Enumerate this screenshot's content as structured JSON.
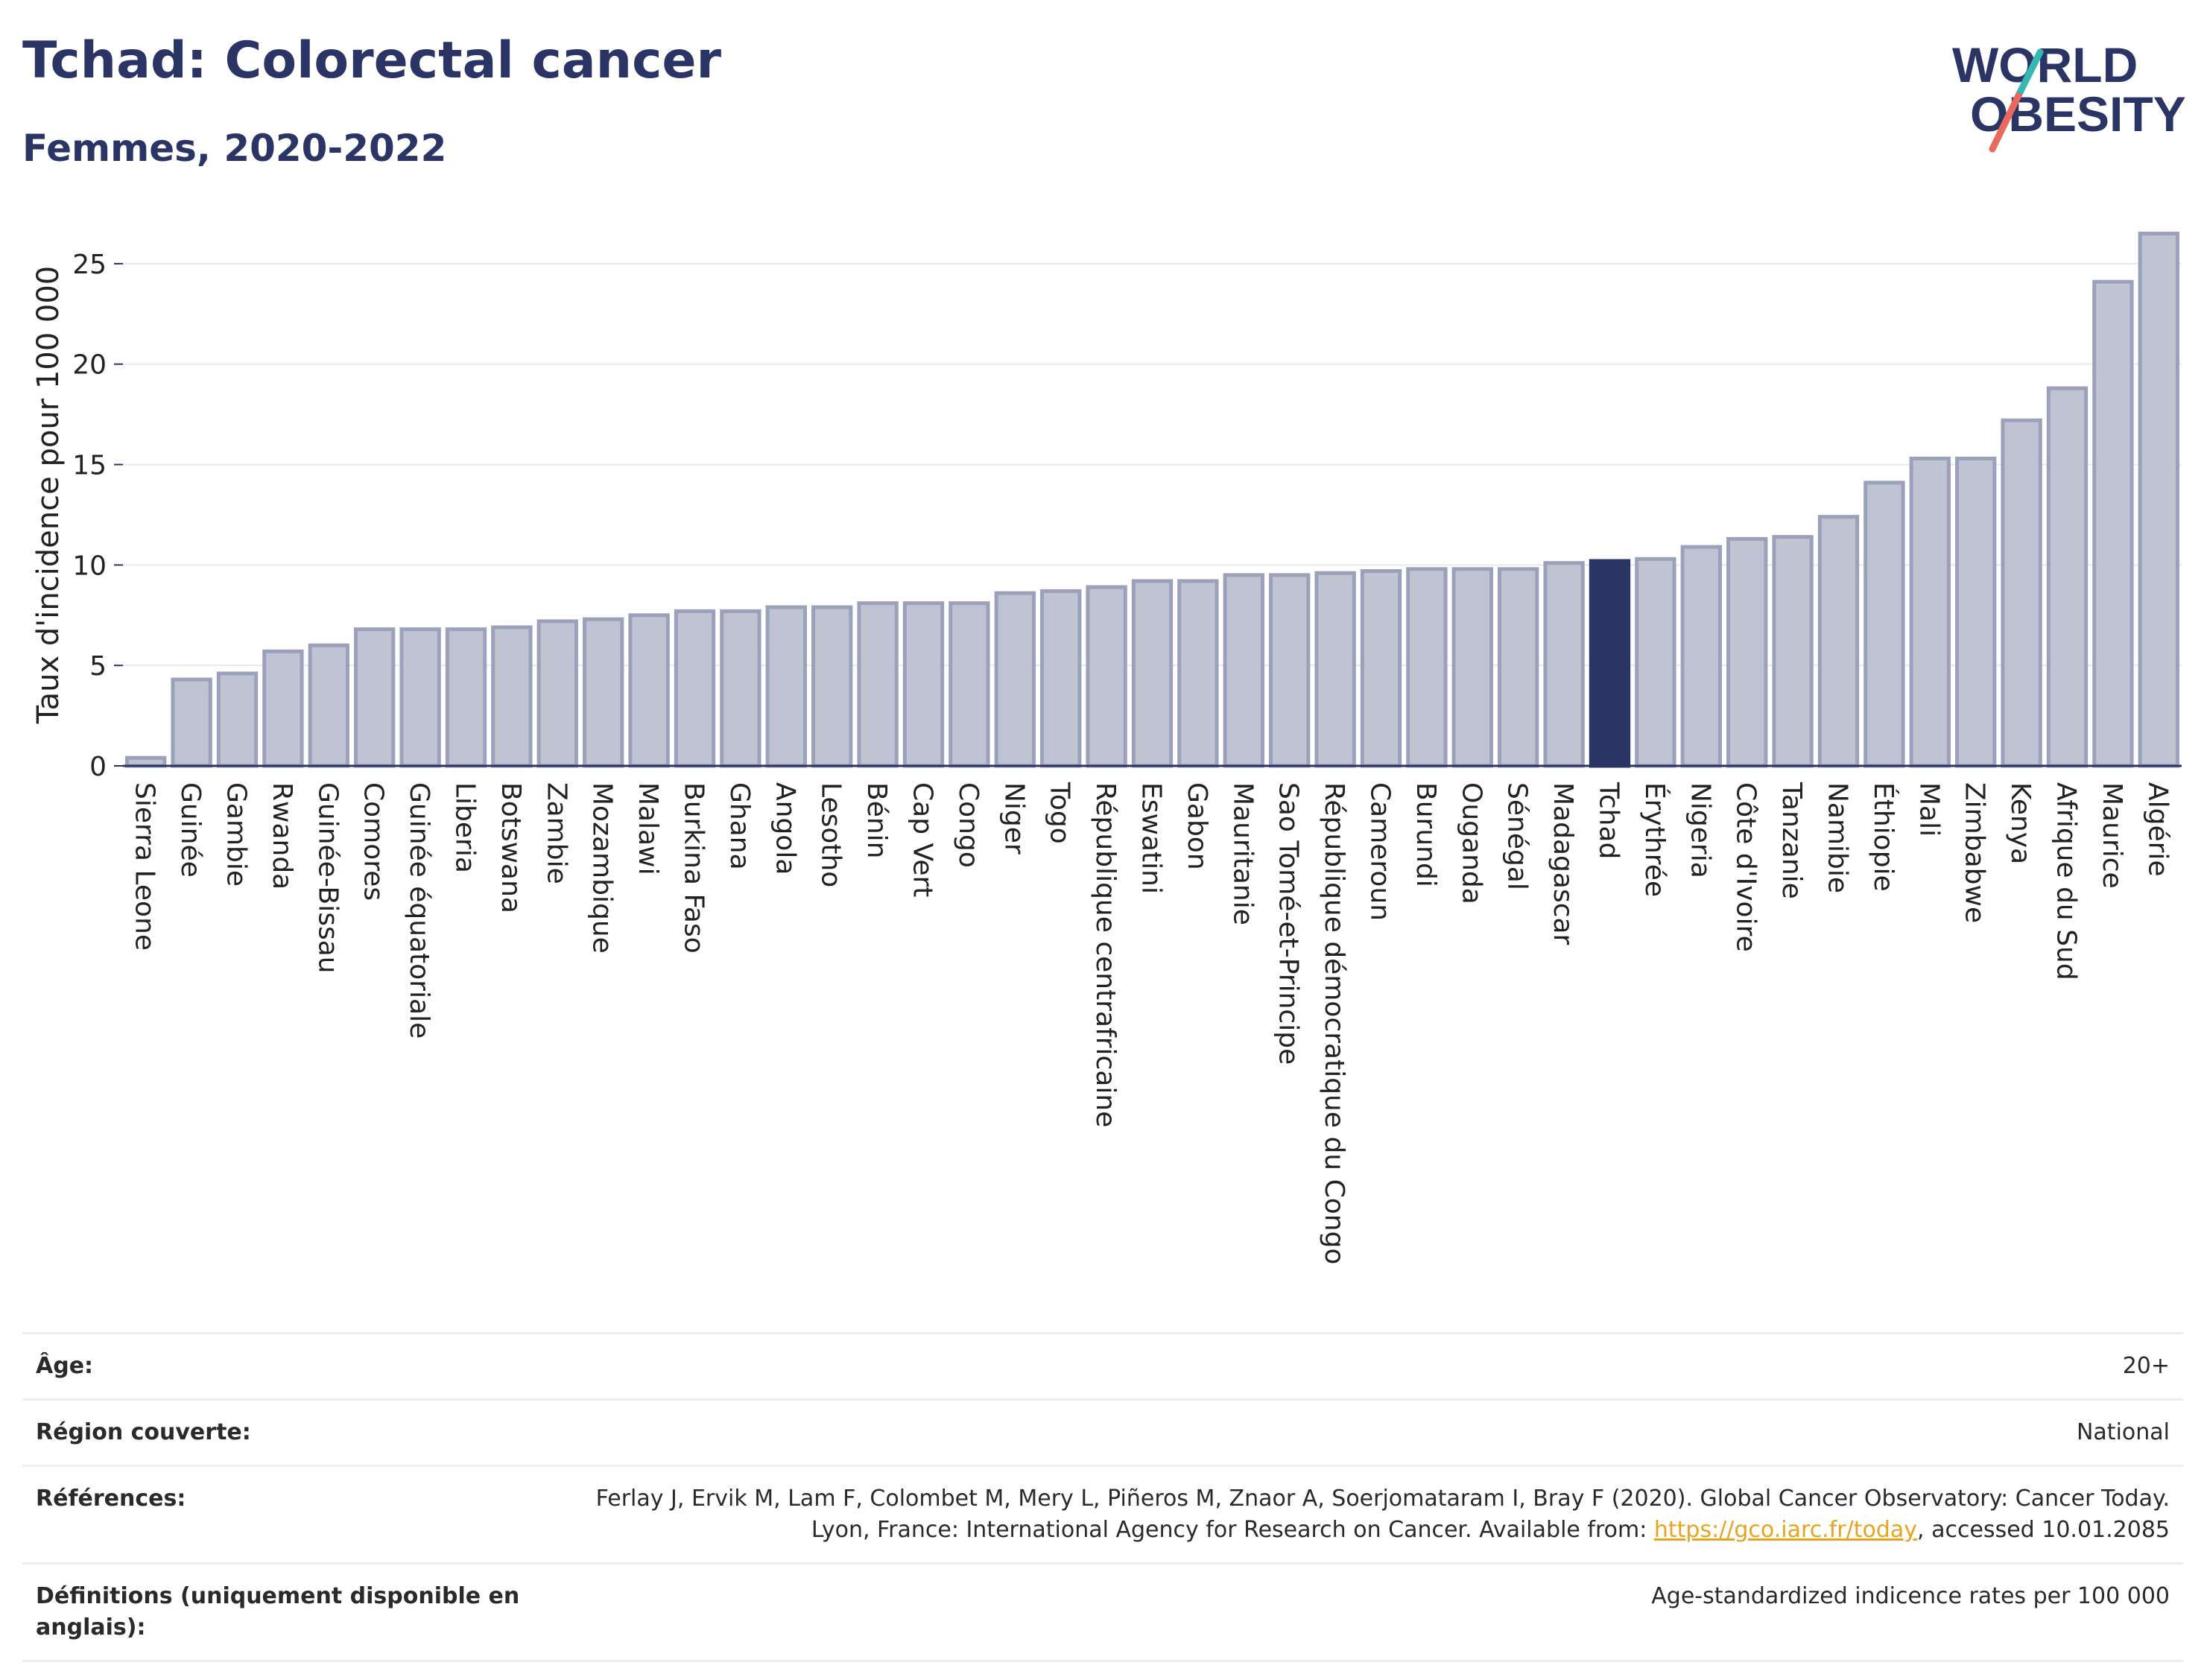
{
  "header": {
    "title": "Tchad: Colorectal cancer",
    "subtitle": "Femmes, 2020-2022"
  },
  "logo": {
    "line1": "WORLD",
    "line2": "OBESITY"
  },
  "colors": {
    "highlight": "#2b3565",
    "bar": "#bfc3d2",
    "bar_stroke": "#9ba1bb",
    "grid": "#e6e8ef",
    "link": "#e7a41f"
  },
  "chart_data": {
    "type": "bar",
    "ylabel": "Taux d'incidence pour 100 000",
    "ylim": [
      0,
      27
    ],
    "yticks": [
      0,
      5,
      10,
      15,
      20,
      25
    ],
    "grid": true,
    "highlight": "Tchad",
    "categories": [
      "Sierra Leone",
      "Guinée",
      "Gambie",
      "Rwanda",
      "Guinée-Bissau",
      "Comores",
      "Guinée équatoriale",
      "Liberia",
      "Botswana",
      "Zambie",
      "Mozambique",
      "Malawi",
      "Burkina Faso",
      "Ghana",
      "Angola",
      "Lesotho",
      "Bénin",
      "Cap Vert",
      "Congo",
      "Niger",
      "Togo",
      "République centrafricaine",
      "Eswatini",
      "Gabon",
      "Mauritanie",
      "Sao Tomé-et-Principe",
      "République démocratique du Congo",
      "Cameroun",
      "Burundi",
      "Ouganda",
      "Sénégal",
      "Madagascar",
      "Tchad",
      "Érythrée",
      "Nigeria",
      "Côte d'Ivoire",
      "Tanzanie",
      "Namibie",
      "Éthiopie",
      "Mali",
      "Zimbabwe",
      "Kenya",
      "Afrique du Sud",
      "Maurice",
      "Algérie"
    ],
    "values": [
      0.4,
      4.3,
      4.6,
      5.7,
      6.0,
      6.8,
      6.8,
      6.8,
      6.9,
      7.2,
      7.3,
      7.5,
      7.7,
      7.7,
      7.9,
      7.9,
      8.1,
      8.1,
      8.1,
      8.6,
      8.7,
      8.9,
      9.2,
      9.2,
      9.5,
      9.5,
      9.6,
      9.7,
      9.8,
      9.8,
      9.8,
      10.1,
      10.2,
      10.3,
      10.9,
      11.3,
      11.4,
      12.4,
      14.1,
      15.3,
      15.3,
      17.2,
      18.8,
      24.1,
      26.5
    ]
  },
  "info": [
    {
      "key": "Âge:",
      "value": "20+"
    },
    {
      "key": "Région couverte:",
      "value": "National"
    },
    {
      "key": "Références:",
      "value_pre": "Ferlay J, Ervik M, Lam F, Colombet M, Mery L, Piñeros M, Znaor A, Soerjomataram I, Bray F (2020). Global Cancer Observatory: Cancer Today. Lyon, France: International Agency for Research on Cancer. Available from: ",
      "link": "https://gco.iarc.fr/today",
      "value_post": ", accessed 10.01.2085"
    },
    {
      "key": "Définitions (uniquement disponible en anglais):",
      "value": "Age-standardized indicence rates per 100 000"
    }
  ]
}
